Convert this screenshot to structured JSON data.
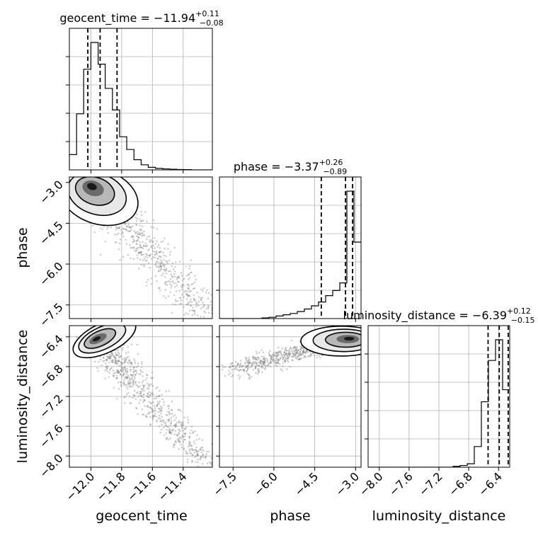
{
  "chart_data": {
    "type": "corner",
    "parameters": [
      "geocent_time",
      "phase",
      "luminosity_distance"
    ],
    "axis_labels": {
      "x": [
        "geocent_time",
        "phase",
        "luminosity_distance"
      ],
      "y": [
        "phase",
        "luminosity_distance"
      ]
    },
    "titles": [
      {
        "param": "geocent_time",
        "prefix": "geocent_time = ",
        "median": "−11.94",
        "plus": "+0.11",
        "minus": "−0.08"
      },
      {
        "param": "phase",
        "prefix": "phase = ",
        "median": "−3.37",
        "plus": "+0.26",
        "minus": "−0.89"
      },
      {
        "param": "luminosity_distance",
        "prefix": "luminosity_distance = ",
        "median": "−6.39",
        "plus": "+0.12",
        "minus": "−0.15"
      }
    ],
    "ranges": {
      "geocent_time": [
        -12.14,
        -11.21
      ],
      "phase": [
        -8.0,
        -2.8
      ],
      "luminosity_distance": [
        -8.15,
        -6.25
      ]
    },
    "ticks": {
      "geocent_time": {
        "values": [
          -12.0,
          -11.8,
          -11.6,
          -11.4
        ],
        "labels": [
          "−12.0",
          "−11.8",
          "−11.6",
          "−11.4"
        ]
      },
      "phase": {
        "values": [
          -7.5,
          -6.0,
          -4.5,
          -3.0
        ],
        "labels": [
          "−7.5",
          "−6.0",
          "−4.5",
          "−3.0"
        ]
      },
      "luminosity_distance": {
        "values": [
          -8.0,
          -7.6,
          -7.2,
          -6.8,
          -6.4
        ],
        "labels": [
          "−8.0",
          "−7.6",
          "−7.2",
          "−6.8",
          "−6.4"
        ]
      }
    },
    "histograms": [
      {
        "param": "geocent_time",
        "edges": [
          -12.14,
          -12.093,
          -12.047,
          -12.0,
          -11.953,
          -11.907,
          -11.86,
          -11.813,
          -11.767,
          -11.72,
          -11.673,
          -11.627,
          -11.58,
          -11.533,
          -11.487,
          -11.44,
          -11.393,
          -11.347,
          -11.3,
          -11.253,
          -11.21
        ],
        "counts": [
          0.12,
          0.44,
          0.79,
          1.0,
          0.83,
          0.64,
          0.47,
          0.26,
          0.16,
          0.08,
          0.04,
          0.02,
          0.012,
          0.008,
          0.005,
          0.003,
          0.002,
          0.0,
          0.0,
          0.0
        ],
        "quantiles": [
          -12.02,
          -11.94,
          -11.83
        ]
      },
      {
        "param": "phase",
        "edges": [
          -8.0,
          -7.74,
          -7.48,
          -7.22,
          -6.96,
          -6.7,
          -6.44,
          -6.18,
          -5.92,
          -5.66,
          -5.4,
          -5.14,
          -4.88,
          -4.62,
          -4.36,
          -4.1,
          -3.84,
          -3.58,
          -3.32,
          -3.06,
          -2.8
        ],
        "counts": [
          0.0,
          0.0,
          0.0,
          0.0,
          0.0,
          0.0,
          0.005,
          0.01,
          0.02,
          0.03,
          0.04,
          0.055,
          0.075,
          0.1,
          0.13,
          0.18,
          0.22,
          0.28,
          1.0,
          0.6
        ],
        "quantiles": [
          -4.26,
          -3.37,
          -3.11
        ]
      },
      {
        "param": "luminosity_distance",
        "edges": [
          -8.15,
          -8.055,
          -7.96,
          -7.865,
          -7.77,
          -7.675,
          -7.58,
          -7.485,
          -7.39,
          -7.295,
          -7.2,
          -7.105,
          -7.01,
          -6.915,
          -6.82,
          -6.725,
          -6.63,
          -6.535,
          -6.44,
          -6.345,
          -6.25
        ],
        "counts": [
          0.0,
          0.0,
          0.0,
          0.0,
          0.0,
          0.0,
          0.0,
          0.0,
          0.0,
          0.0,
          0.0,
          0.0,
          0.005,
          0.01,
          0.02,
          0.12,
          0.38,
          0.62,
          0.74,
          0.45
        ],
        "quantiles": [
          -6.54,
          -6.39,
          -6.27
        ]
      }
    ],
    "scatter_2d": [
      {
        "x": "geocent_time",
        "y": "phase",
        "peak": [
          -12.0,
          -3.1
        ],
        "spread": [
          0.12,
          0.6
        ],
        "trend": "points extend from upper-left toward lower-right"
      },
      {
        "x": "geocent_time",
        "y": "luminosity_distance",
        "peak": [
          -11.97,
          -6.43
        ],
        "spread": [
          0.1,
          0.15
        ],
        "trend": "points extend from upper-left toward lower-right"
      },
      {
        "x": "phase",
        "y": "luminosity_distance",
        "peak": [
          -3.2,
          -6.42
        ],
        "spread": [
          0.7,
          0.12
        ],
        "trend": "points extend leftward from the right edge"
      }
    ],
    "grid": true,
    "colors": {
      "line": "#000000",
      "scatter": "#808080",
      "grid": "#b0b0b0"
    }
  }
}
